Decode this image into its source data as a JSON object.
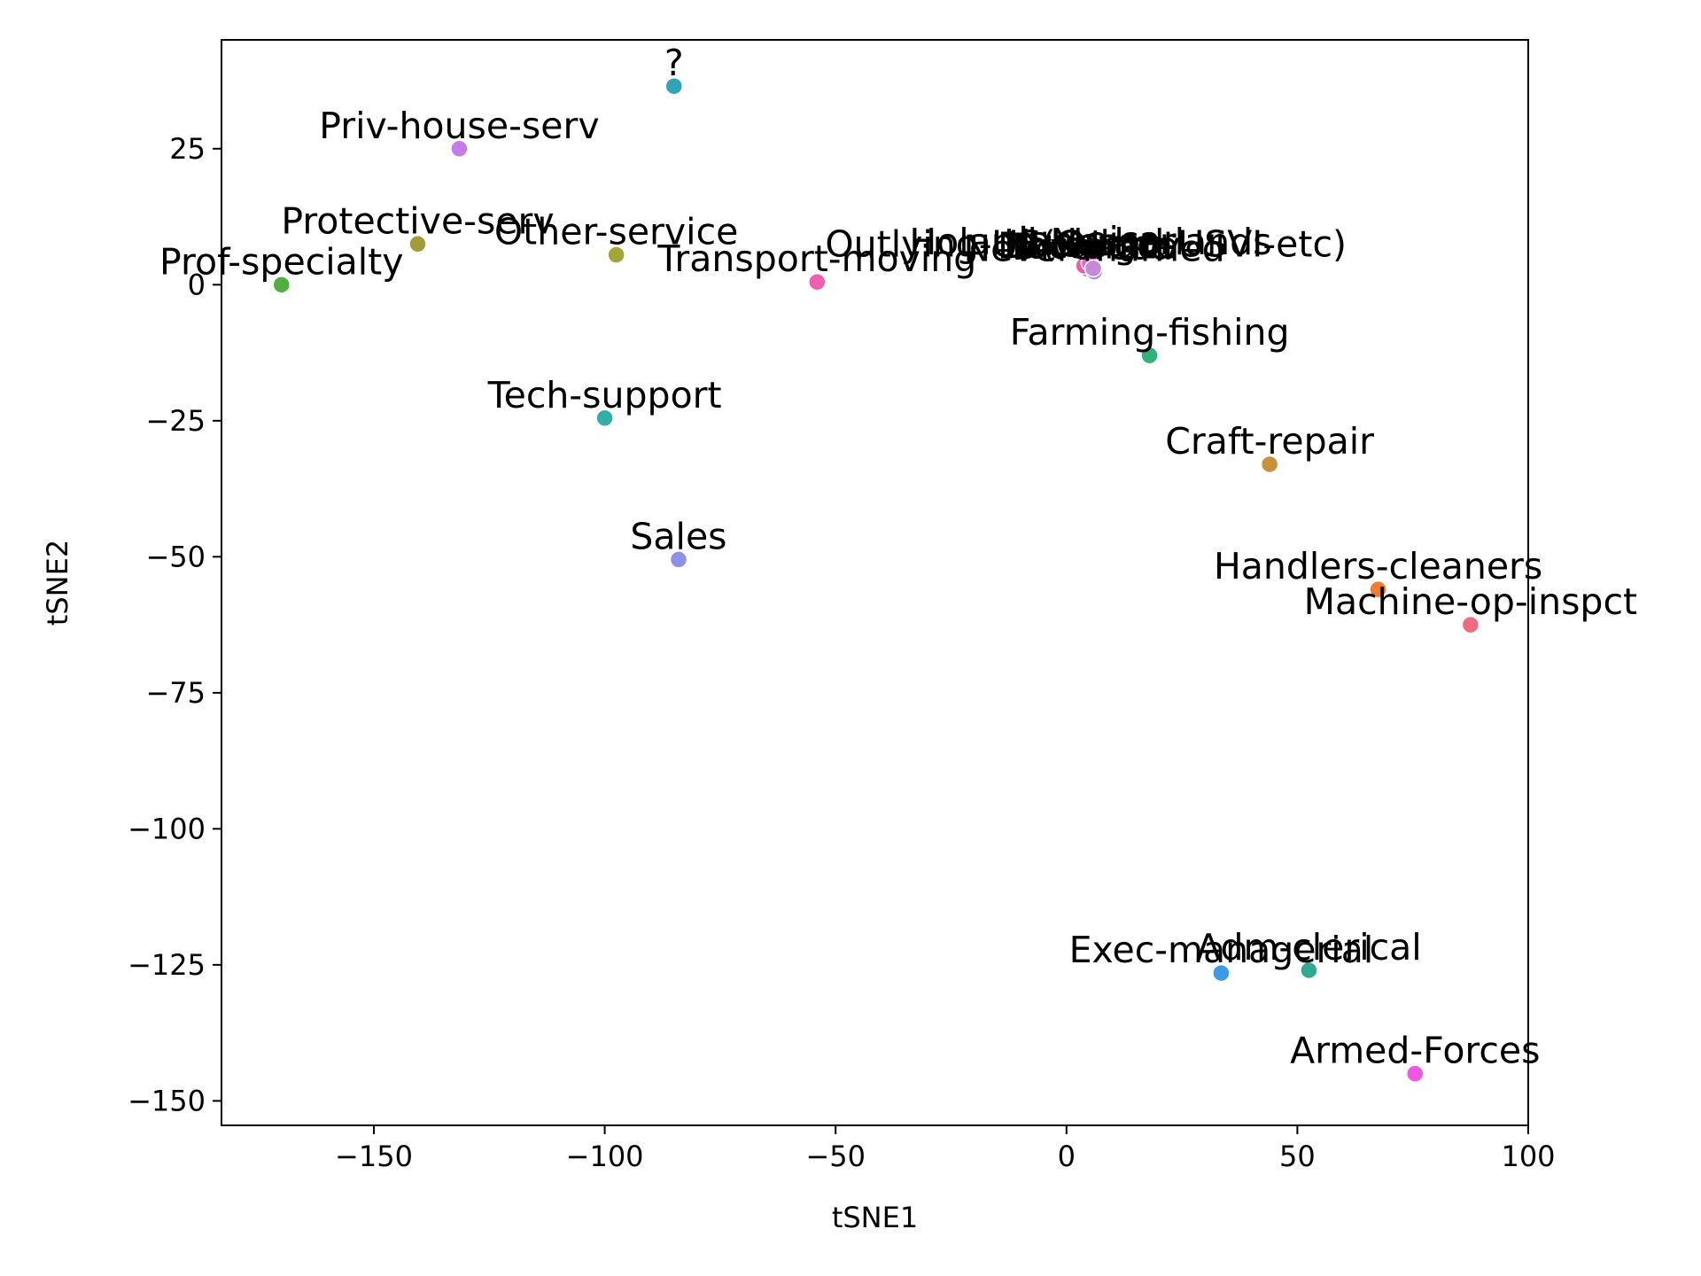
{
  "chart_data": {
    "type": "scatter",
    "title": "",
    "xlabel": "tSNE1",
    "ylabel": "tSNE2",
    "xlim": [
      -183,
      100
    ],
    "ylim": [
      -154.5,
      45
    ],
    "xticks": [
      -150,
      -100,
      -50,
      0,
      50,
      100
    ],
    "yticks": [
      -150,
      -125,
      -100,
      -75,
      -50,
      -25,
      0,
      25
    ],
    "grid": false,
    "legend": "none",
    "points": [
      {
        "label": "?",
        "x": -85,
        "y": 36.5,
        "color": "#31a3b8"
      },
      {
        "label": "Priv-house-serv",
        "x": -131.5,
        "y": 25,
        "color": "#c77be8"
      },
      {
        "label": "Protective-serv",
        "x": -140.5,
        "y": 7.5,
        "color": "#a39a3a"
      },
      {
        "label": "Other-service",
        "x": -97.5,
        "y": 5.5,
        "color": "#a3a637"
      },
      {
        "label": "Prof-specialty",
        "x": -170,
        "y": 0,
        "color": "#4fb03d"
      },
      {
        "label": "Transport-moving",
        "x": -54,
        "y": 0.5,
        "color": "#ef5fb0"
      },
      {
        "label": "Farming-fishing",
        "x": 18,
        "y": -13,
        "color": "#2fb37a"
      },
      {
        "label": "Tech-support",
        "x": -100,
        "y": -24.5,
        "color": "#33afa8"
      },
      {
        "label": "Craft-repair",
        "x": 44,
        "y": -33,
        "color": "#c9913a"
      },
      {
        "label": "Sales",
        "x": -84,
        "y": -50.5,
        "color": "#8e90ea"
      },
      {
        "label": "Handlers-cleaners",
        "x": 67.5,
        "y": -56,
        "color": "#f27a32"
      },
      {
        "label": "Machine-op-inspct",
        "x": 87.5,
        "y": -62.5,
        "color": "#f06b7e"
      },
      {
        "label": "Exec-managerial",
        "x": 33.5,
        "y": -126.5,
        "color": "#3c9ae6"
      },
      {
        "label": "Adm-clerical",
        "x": 52.5,
        "y": -126,
        "color": "#30ab90"
      },
      {
        "label": "Armed-Forces",
        "x": 75.5,
        "y": -145,
        "color": "#ee58e0"
      }
    ],
    "cluster_points": [
      {
        "label": "Holand-Netherlands",
        "x": 5.2,
        "y": 3.6,
        "color": "#cf6ad8"
      },
      {
        "label": "Outlying-US(Guam-USVI-etc)",
        "x": 4.2,
        "y": 3.2,
        "color": "#e65fd0"
      },
      {
        "label": "Divorced",
        "x": 5.6,
        "y": 2.7,
        "color": "#b987e2"
      },
      {
        "label": "Doctorate",
        "x": 4.6,
        "y": 2.9,
        "color": "#d45ec8"
      },
      {
        "label": "Never-married",
        "x": 6.0,
        "y": 2.4,
        "color": "#a48ee6"
      },
      {
        "label": "Husband",
        "x": 3.8,
        "y": 3.5,
        "color": "#f05aa8"
      },
      {
        "label": "Jamaica",
        "x": 5.0,
        "y": 4.0,
        "color": "#e266d4"
      },
      {
        "label": "Local-gov",
        "x": 5.8,
        "y": 3.0,
        "color": "#c48ad8"
      }
    ]
  }
}
